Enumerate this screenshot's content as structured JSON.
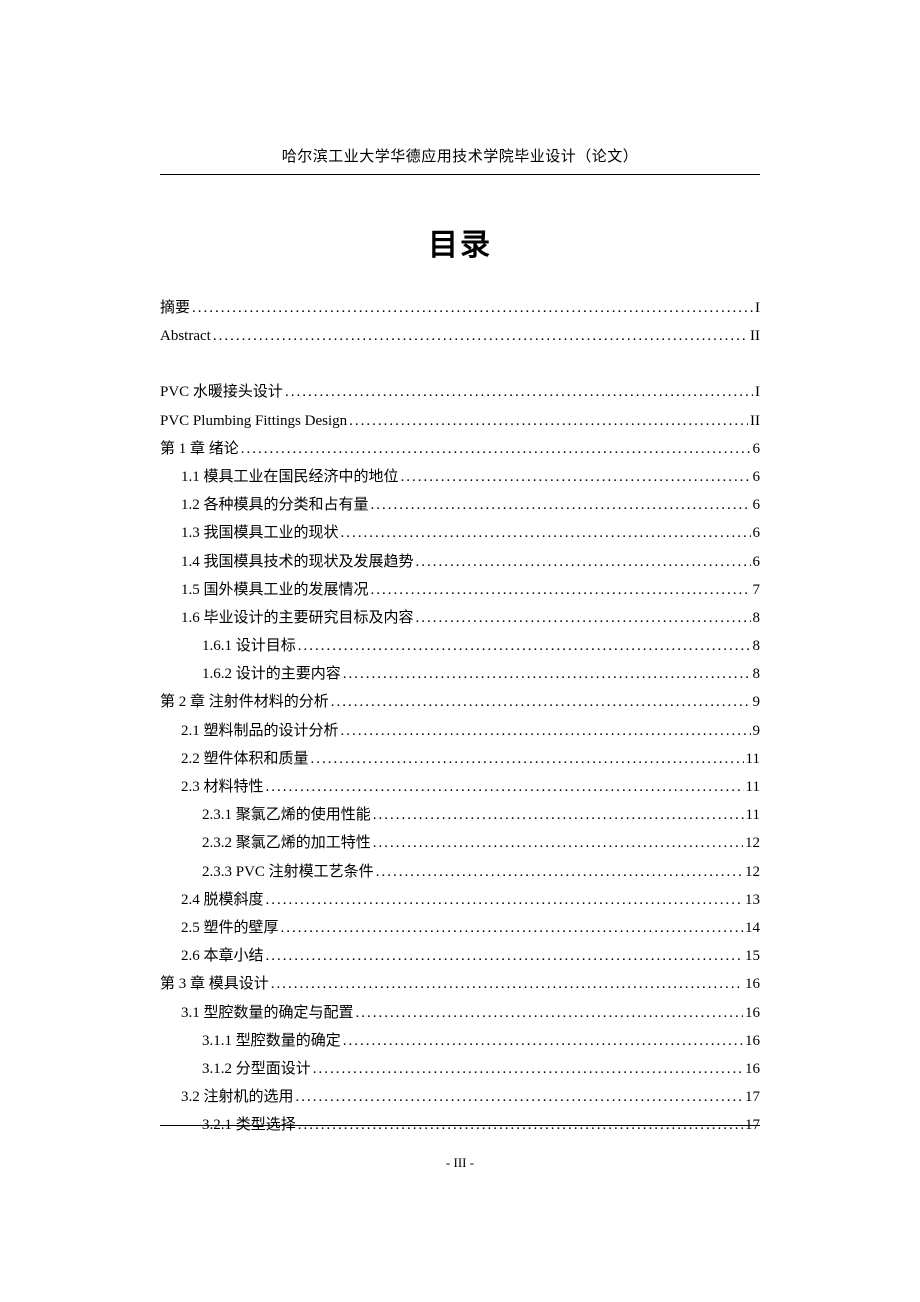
{
  "header": "哈尔滨工业大学华德应用技术学院毕业设计（论文）",
  "title": "目录",
  "pageNumber": "- III -",
  "toc": {
    "items": [
      {
        "label": "摘要",
        "page": "I",
        "indent": 0,
        "gap": false,
        "labelClass": ""
      },
      {
        "label": "Abstract",
        "page": "II",
        "indent": 0,
        "gap": false,
        "labelClass": "en"
      },
      {
        "label": "PVC 水暖接头设计",
        "page": "I",
        "indent": 0,
        "gap": true,
        "labelClass": ""
      },
      {
        "label": "PVC Plumbing Fittings Design",
        "page": "II",
        "indent": 0,
        "gap": false,
        "labelClass": "en"
      },
      {
        "label": "第 1 章  绪论",
        "page": "6",
        "indent": 0,
        "gap": false,
        "labelClass": ""
      },
      {
        "label": "1.1  模具工业在国民经济中的地位",
        "page": "6",
        "indent": 1,
        "gap": false,
        "labelClass": ""
      },
      {
        "label": "1.2  各种模具的分类和占有量",
        "page": "6",
        "indent": 1,
        "gap": false,
        "labelClass": ""
      },
      {
        "label": "1.3  我国模具工业的现状",
        "page": "6",
        "indent": 1,
        "gap": false,
        "labelClass": ""
      },
      {
        "label": "1.4 我国模具技术的现状及发展趋势",
        "page": "6",
        "indent": 1,
        "gap": false,
        "labelClass": ""
      },
      {
        "label": "1.5  国外模具工业的发展情况",
        "page": "7",
        "indent": 1,
        "gap": false,
        "labelClass": ""
      },
      {
        "label": "1.6  毕业设计的主要研究目标及内容",
        "page": "8",
        "indent": 1,
        "gap": false,
        "labelClass": ""
      },
      {
        "label": "1.6.1  设计目标",
        "page": "8",
        "indent": 2,
        "gap": false,
        "labelClass": ""
      },
      {
        "label": "1.6.2  设计的主要内容",
        "page": "8",
        "indent": 2,
        "gap": false,
        "labelClass": ""
      },
      {
        "label": "第 2 章  注射件材料的分析",
        "page": "9",
        "indent": 0,
        "gap": false,
        "labelClass": ""
      },
      {
        "label": "2.1  塑料制品的设计分析",
        "page": "9",
        "indent": 1,
        "gap": false,
        "labelClass": ""
      },
      {
        "label": "2.2  塑件体积和质量",
        "page": "11",
        "indent": 1,
        "gap": false,
        "labelClass": ""
      },
      {
        "label": "2.3  材料特性",
        "page": "11",
        "indent": 1,
        "gap": false,
        "labelClass": ""
      },
      {
        "label": "2.3.1  聚氯乙烯的使用性能",
        "page": "11",
        "indent": 2,
        "gap": false,
        "labelClass": ""
      },
      {
        "label": "2.3.2  聚氯乙烯的加工特性",
        "page": "12",
        "indent": 2,
        "gap": false,
        "labelClass": ""
      },
      {
        "label": "2.3.3 PVC 注射模工艺条件",
        "page": "12",
        "indent": 2,
        "gap": false,
        "labelClass": ""
      },
      {
        "label": "2.4 脱模斜度",
        "page": "13",
        "indent": 1,
        "gap": false,
        "labelClass": ""
      },
      {
        "label": "2.5 塑件的壁厚",
        "page": "14",
        "indent": 1,
        "gap": false,
        "labelClass": ""
      },
      {
        "label": "2.6  本章小结",
        "page": "15",
        "indent": 1,
        "gap": false,
        "labelClass": ""
      },
      {
        "label": "第 3 章  模具设计",
        "page": "16",
        "indent": 0,
        "gap": false,
        "labelClass": ""
      },
      {
        "label": "3.1  型腔数量的确定与配置",
        "page": "16",
        "indent": 1,
        "gap": false,
        "labelClass": ""
      },
      {
        "label": "3.1.1  型腔数量的确定",
        "page": "16",
        "indent": 2,
        "gap": false,
        "labelClass": ""
      },
      {
        "label": "3.1.2  分型面设计",
        "page": "16",
        "indent": 2,
        "gap": false,
        "labelClass": ""
      },
      {
        "label": "3.2  注射机的选用",
        "page": "17",
        "indent": 1,
        "gap": false,
        "labelClass": ""
      },
      {
        "label": "3.2.1  类型选择",
        "page": "17",
        "indent": 2,
        "gap": false,
        "labelClass": ""
      }
    ]
  }
}
